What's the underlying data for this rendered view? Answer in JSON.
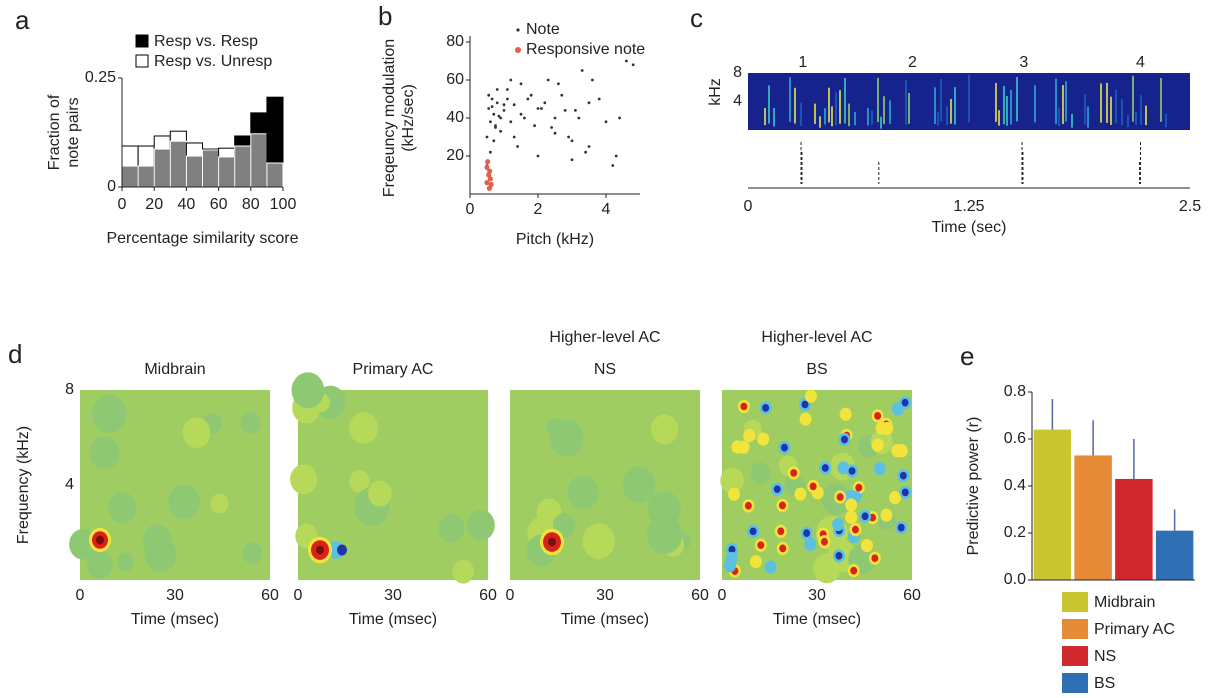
{
  "chart_data": [
    {
      "type": "histogram",
      "panel": "a",
      "ylabel": [
        "Fraction of",
        "note pairs"
      ],
      "xlabel": "Percentage similarity score",
      "bins": [
        0,
        10,
        20,
        30,
        40,
        50,
        60,
        70,
        80,
        90,
        100
      ],
      "series": [
        {
          "name": "Resp vs. Resp",
          "color": "#000000",
          "values": [
            0.048,
            0.048,
            0.087,
            0.105,
            0.071,
            0.085,
            0.069,
            0.117,
            0.17,
            0.206
          ]
        },
        {
          "name": "Resp vs. Unresp",
          "color": "#ffffff",
          "values": [
            0.094,
            0.094,
            0.117,
            0.128,
            0.101,
            0.087,
            0.089,
            0.094,
            0.122,
            0.055
          ]
        }
      ],
      "overlap_color": "#808080",
      "xlim": [
        0,
        100
      ],
      "xticks": [
        0,
        20,
        40,
        60,
        80,
        100
      ],
      "ylim": [
        0,
        0.25
      ],
      "yticks": [
        0,
        0.25
      ]
    },
    {
      "type": "scatter",
      "panel": "b",
      "ylabel": [
        "Freqeuncy modulation",
        "(kHz/sec)"
      ],
      "xlabel": "Pitch (kHz)",
      "series": [
        {
          "name": "Note",
          "color": "#333333",
          "x": [
            0.5,
            0.55,
            0.6,
            0.65,
            0.7,
            0.75,
            0.8,
            0.9,
            1.0,
            1.1,
            1.2,
            1.3,
            1.5,
            1.7,
            1.9,
            2.1,
            2.3,
            2.5,
            2.7,
            2.9,
            3.1,
            3.3,
            3.5,
            3.8,
            4.0,
            4.3,
            4.6,
            4.8,
            0.5,
            0.6,
            0.7,
            0.8,
            0.9,
            1.0,
            1.2,
            1.4,
            1.6,
            1.8,
            2.0,
            2.2,
            2.4,
            2.6,
            2.8,
            3.0,
            3.2,
            3.4,
            3.6,
            4.2,
            0.55,
            0.65,
            0.75,
            0.85,
            1.1,
            1.3,
            1.5,
            2.0,
            2.5,
            3.0,
            3.5,
            4.4
          ],
          "values": [
            30,
            45,
            38,
            50,
            42,
            35,
            48,
            40,
            44,
            55,
            38,
            47,
            42,
            50,
            36,
            45,
            60,
            40,
            52,
            30,
            44,
            65,
            25,
            50,
            38,
            20,
            70,
            68,
            15,
            22,
            28,
            55,
            33,
            47,
            60,
            25,
            40,
            52,
            20,
            48,
            35,
            58,
            44,
            28,
            40,
            22,
            60,
            15,
            52,
            46,
            36,
            41,
            50,
            30,
            58,
            45,
            32,
            18,
            48,
            40
          ]
        },
        {
          "name": "Responsive note",
          "color": "#e0604a",
          "x": [
            0.5,
            0.55,
            0.6,
            0.5,
            0.58,
            0.62,
            0.52,
            0.57
          ],
          "values": [
            14,
            10,
            8,
            6,
            12,
            5,
            17,
            3
          ]
        }
      ],
      "xlim": [
        0,
        5
      ],
      "xticks": [
        0,
        2,
        4
      ],
      "ylim": [
        0,
        80
      ],
      "yticks": [
        20,
        40,
        60,
        80
      ]
    },
    {
      "type": "spectrogram",
      "panel": "c",
      "ylabel": "kHz",
      "xlabel": "Time (sec)",
      "xlim": [
        0,
        2.5
      ],
      "xticks": [
        0,
        1.25,
        2.5
      ],
      "ylim": [
        0,
        8
      ],
      "yticks": [
        4,
        8
      ],
      "notes": {
        "labels": [
          "1",
          "2",
          "3",
          "4"
        ],
        "x": [
          0.31,
          0.93,
          1.56,
          2.22
        ]
      },
      "spikes": [
        0.3,
        0.305,
        0.74,
        1.55,
        1.555,
        2.215,
        2.22
      ]
    },
    {
      "type": "strf",
      "panel": "d",
      "title": [
        "Midbrain"
      ],
      "ylabel": "Frequency (kHz)",
      "xlabel": "Time (msec)",
      "xlim": [
        0,
        60
      ],
      "xticks": [
        0,
        30,
        60
      ],
      "ylim": [
        0,
        8
      ],
      "yticks": [
        4,
        8
      ]
    },
    {
      "type": "strf",
      "title": [
        "Primary AC"
      ],
      "xlabel": "Time (msec)",
      "xlim": [
        0,
        60
      ],
      "xticks": [
        0,
        30,
        60
      ],
      "ylim": [
        0,
        8
      ]
    },
    {
      "type": "strf",
      "title": [
        "Higher-level AC",
        "NS"
      ],
      "xlabel": "Time (msec)",
      "xlim": [
        0,
        60
      ],
      "xticks": [
        0,
        30,
        60
      ],
      "ylim": [
        0,
        8
      ]
    },
    {
      "type": "strf",
      "title": [
        "Higher-level AC",
        "BS"
      ],
      "xlabel": "Time (msec)",
      "xlim": [
        0,
        60
      ],
      "xticks": [
        0,
        30,
        60
      ],
      "ylim": [
        0,
        8
      ]
    },
    {
      "type": "bar",
      "panel": "e",
      "ylabel": "Predictive power (r)",
      "categories": [
        "Midbrain",
        "Primary AC",
        "NS",
        "BS"
      ],
      "values": [
        0.64,
        0.53,
        0.43,
        0.21
      ],
      "errors": [
        0.13,
        0.15,
        0.17,
        0.09
      ],
      "colors": [
        "#c9c531",
        "#e58a36",
        "#d0282e",
        "#2f6fb3"
      ],
      "ylim": [
        0,
        0.8
      ],
      "yticks": [
        {
          "value": 0,
          "label": "0.0"
        },
        0.2,
        0.4,
        0.6,
        0.8
      ]
    }
  ]
}
